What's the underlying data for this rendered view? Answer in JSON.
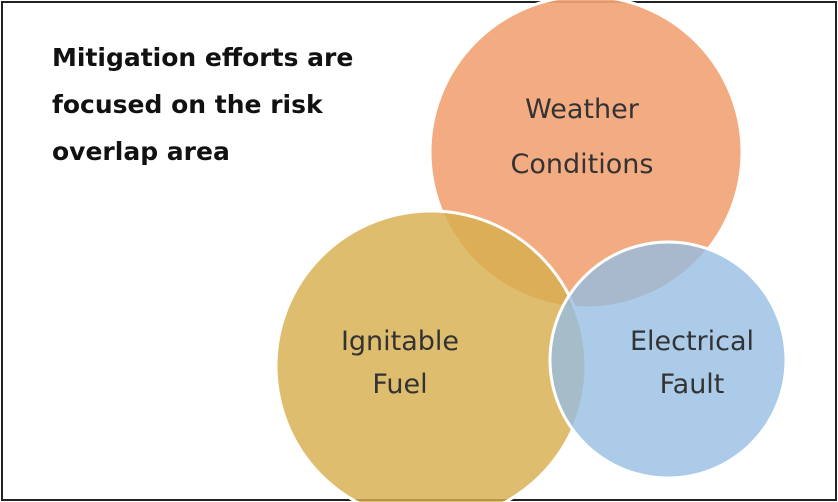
{
  "title_lines": [
    "Mitigation efforts are",
    "focused on the risk",
    "overlap area"
  ],
  "circles": [
    {
      "label_lines": [
        "Weather",
        "Conditions"
      ]
    },
    {
      "label_lines": [
        "Ignitable",
        "Fuel"
      ]
    },
    {
      "label_lines": [
        "Electrical",
        "Fault"
      ]
    }
  ]
}
